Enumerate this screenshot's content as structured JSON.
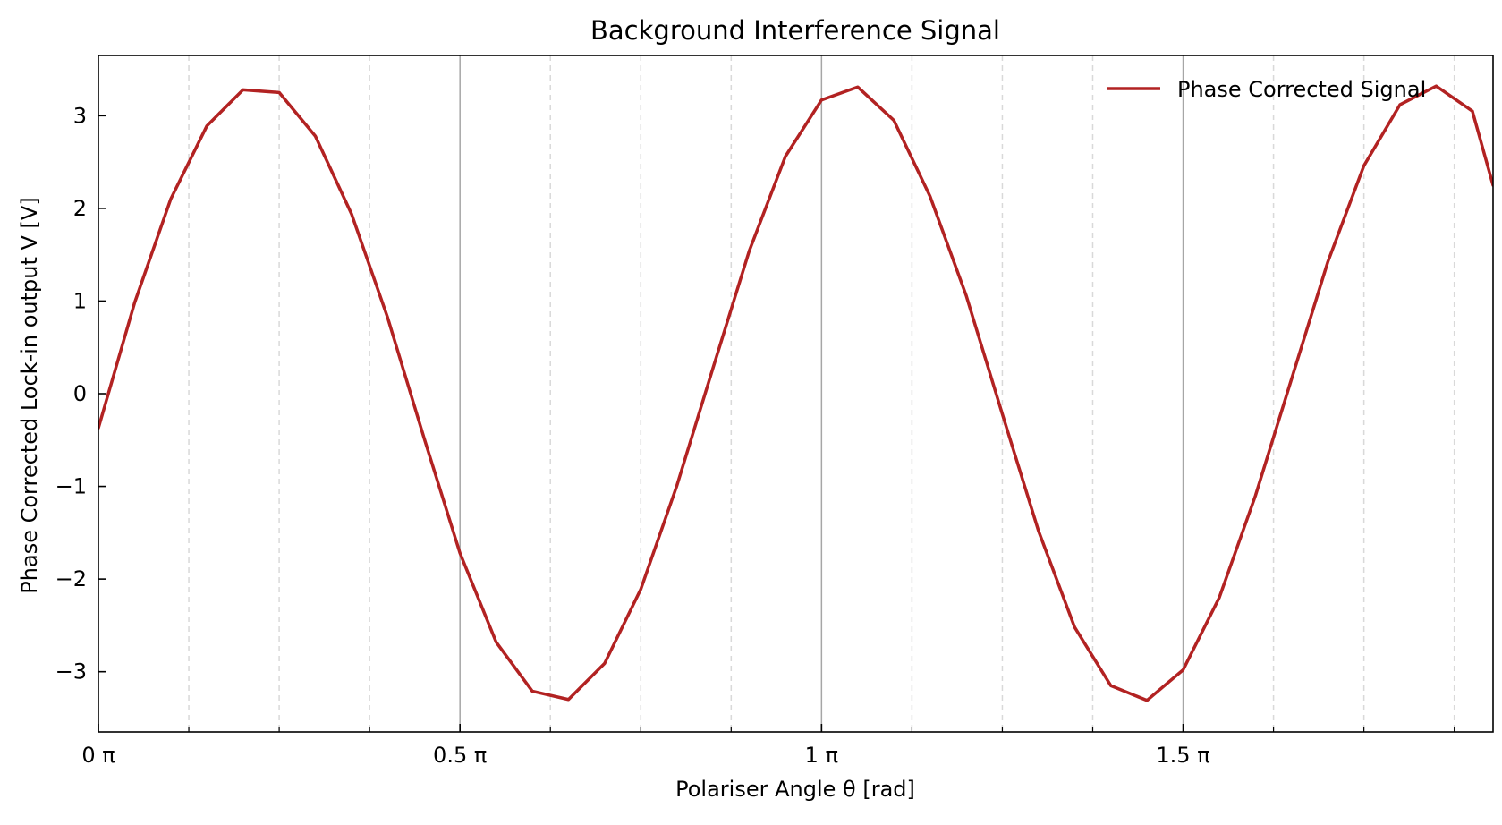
{
  "chart_data": {
    "type": "line",
    "title": "Background Interference Signal",
    "xlabel": "Polariser Angle θ [rad]",
    "ylabel": "Phase Corrected Lock-in output V [V]",
    "x_unit": "π rad",
    "xlim": [
      0,
      1.9286
    ],
    "ylim": [
      -3.65,
      3.65
    ],
    "x_ticks": [
      {
        "value": 0,
        "label": "0 π"
      },
      {
        "value": 0.5,
        "label": "0.5 π"
      },
      {
        "value": 1,
        "label": "1 π"
      },
      {
        "value": 1.5,
        "label": "1.5 π"
      }
    ],
    "y_ticks": [
      {
        "value": 3,
        "label": "3"
      },
      {
        "value": 2,
        "label": "2"
      },
      {
        "value": 1,
        "label": "1"
      },
      {
        "value": 0,
        "label": "0"
      },
      {
        "value": -1,
        "label": "−1"
      },
      {
        "value": -2,
        "label": "−2"
      },
      {
        "value": -3,
        "label": "−3"
      }
    ],
    "x_major_grid": [
      0.5,
      1,
      1.5
    ],
    "x_minor_grid": [
      0.125,
      0.25,
      0.375,
      0.625,
      0.75,
      0.875,
      1.125,
      1.25,
      1.375,
      1.625,
      1.75,
      1.875
    ],
    "grid": true,
    "legend_position": "top-right",
    "series": [
      {
        "name": "Phase Corrected Signal",
        "color": "#b22222",
        "x": [
          0,
          0.05,
          0.1,
          0.15,
          0.2,
          0.25,
          0.3,
          0.35,
          0.4,
          0.45,
          0.5,
          0.55,
          0.6,
          0.65,
          0.7,
          0.75,
          0.8,
          0.85,
          0.9,
          0.95,
          1.0,
          1.05,
          1.1,
          1.15,
          1.2,
          1.25,
          1.3,
          1.35,
          1.4,
          1.45,
          1.5,
          1.55,
          1.6,
          1.65,
          1.7,
          1.75,
          1.8,
          1.85,
          1.9,
          1.9286
        ],
        "y": [
          -0.37,
          0.98,
          2.1,
          2.89,
          3.28,
          3.25,
          2.78,
          1.94,
          0.82,
          -0.47,
          -1.72,
          -2.68,
          -3.21,
          -3.3,
          -2.91,
          -2.11,
          -0.99,
          0.28,
          1.54,
          2.56,
          3.17,
          3.31,
          2.95,
          2.13,
          1.06,
          -0.22,
          -1.48,
          -2.52,
          -3.15,
          -3.31,
          -2.98,
          -2.2,
          -1.1,
          0.16,
          1.42,
          2.46,
          3.12,
          3.32,
          3.05,
          2.25
        ]
      }
    ]
  }
}
